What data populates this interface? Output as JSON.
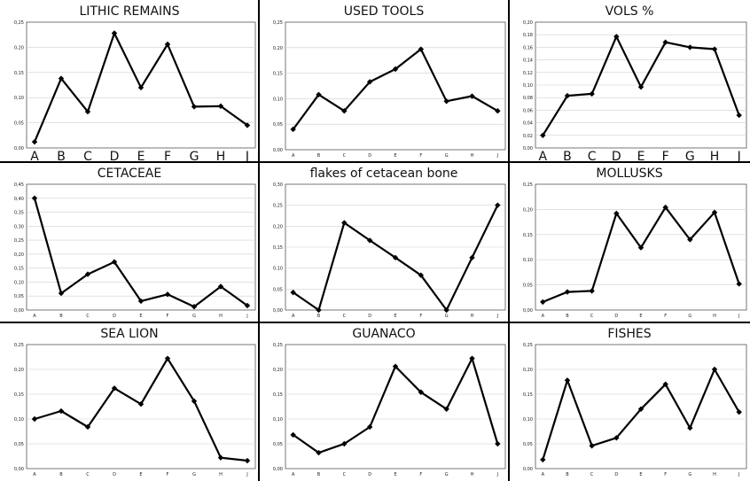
{
  "chart_data": [
    {
      "type": "line",
      "title": "LITHIC REMAINS",
      "categories": [
        "A",
        "B",
        "C",
        "D",
        "E",
        "F",
        "G",
        "H",
        "J"
      ],
      "values": [
        0.012,
        0.138,
        0.072,
        0.228,
        0.12,
        0.206,
        0.082,
        0.083,
        0.045
      ],
      "ylim": [
        0,
        0.25
      ],
      "yticks": [
        "0,00",
        "0,05",
        "0,10",
        "0,15",
        "0,20",
        "0,25"
      ],
      "xlabel_size": "large"
    },
    {
      "type": "line",
      "title": "USED TOOLS",
      "categories": [
        "A",
        "B",
        "C",
        "D",
        "E",
        "F",
        "G",
        "H",
        "J"
      ],
      "values": [
        0.04,
        0.108,
        0.076,
        0.133,
        0.158,
        0.197,
        0.095,
        0.105,
        0.076
      ],
      "ylim": [
        0,
        0.25
      ],
      "yticks": [
        "0,00",
        "0,05",
        "0,10",
        "0,15",
        "0,20",
        "0,25"
      ],
      "xlabel_size": "small"
    },
    {
      "type": "line",
      "title": "VOLS %",
      "categories": [
        "A",
        "B",
        "C",
        "D",
        "E",
        "F",
        "G",
        "H",
        "J"
      ],
      "values": [
        0.02,
        0.083,
        0.086,
        0.177,
        0.097,
        0.168,
        0.16,
        0.157,
        0.052
      ],
      "ylim": [
        0,
        0.2
      ],
      "yticks": [
        "0,00",
        "0,02",
        "0,04",
        "0,06",
        "0,08",
        "0,10",
        "0,12",
        "0,14",
        "0,16",
        "0,18",
        "0,20"
      ],
      "xlabel_size": "large"
    },
    {
      "type": "line",
      "title": "CETACEAE",
      "categories": [
        "A",
        "B",
        "C",
        "D",
        "E",
        "F",
        "G",
        "H",
        "J"
      ],
      "values": [
        0.4,
        0.06,
        0.128,
        0.172,
        0.032,
        0.056,
        0.012,
        0.084,
        0.016
      ],
      "ylim": [
        0,
        0.45
      ],
      "yticks": [
        "0,00",
        "0,05",
        "0,10",
        "0,15",
        "0,20",
        "0,25",
        "0,30",
        "0,35",
        "0,40",
        "0,45"
      ],
      "xlabel_size": "small"
    },
    {
      "type": "line",
      "title": "flakes of cetacean bone",
      "categories": [
        "A",
        "B",
        "C",
        "D",
        "E",
        "F",
        "G",
        "H",
        "J"
      ],
      "values": [
        0.042,
        0.0,
        0.208,
        0.166,
        0.125,
        0.083,
        0.0,
        0.125,
        0.25
      ],
      "ylim": [
        0,
        0.3
      ],
      "yticks": [
        "0,00",
        "0,05",
        "0,10",
        "0,15",
        "0,20",
        "0,25",
        "0,30"
      ],
      "xlabel_size": "small"
    },
    {
      "type": "line",
      "title": "MOLLUSKS",
      "categories": [
        "A",
        "B",
        "C",
        "D",
        "E",
        "F",
        "G",
        "H",
        "J"
      ],
      "values": [
        0.016,
        0.036,
        0.038,
        0.192,
        0.124,
        0.204,
        0.14,
        0.194,
        0.052
      ],
      "ylim": [
        0,
        0.25
      ],
      "yticks": [
        "0,00",
        "0,05",
        "0,10",
        "0,15",
        "0,20",
        "0,25"
      ],
      "xlabel_size": "small"
    },
    {
      "type": "line",
      "title": "SEA LION",
      "categories": [
        "A",
        "B",
        "C",
        "D",
        "E",
        "F",
        "G",
        "H",
        "J"
      ],
      "values": [
        0.1,
        0.116,
        0.084,
        0.162,
        0.13,
        0.222,
        0.136,
        0.022,
        0.016
      ],
      "ylim": [
        0,
        0.25
      ],
      "yticks": [
        "0,00",
        "0,05",
        "0,10",
        "0,15",
        "0,20",
        "0,25"
      ],
      "xlabel_size": "small"
    },
    {
      "type": "line",
      "title": "GUANACO",
      "categories": [
        "A",
        "B",
        "C",
        "D",
        "E",
        "F",
        "G",
        "H",
        "J"
      ],
      "values": [
        0.068,
        0.032,
        0.05,
        0.084,
        0.206,
        0.154,
        0.12,
        0.222,
        0.05
      ],
      "ylim": [
        0,
        0.25
      ],
      "yticks": [
        "0,00",
        "0,05",
        "0,10",
        "0,15",
        "0,20",
        "0,25"
      ],
      "xlabel_size": "small"
    },
    {
      "type": "line",
      "title": "FISHES",
      "categories": [
        "A",
        "B",
        "C",
        "D",
        "E",
        "F",
        "G",
        "H",
        "J"
      ],
      "values": [
        0.018,
        0.178,
        0.046,
        0.062,
        0.12,
        0.17,
        0.082,
        0.2,
        0.114
      ],
      "ylim": [
        0,
        0.25
      ],
      "yticks": [
        "0,00",
        "0,05",
        "0,10",
        "0,15",
        "0,20",
        "0,25"
      ],
      "xlabel_size": "small"
    }
  ]
}
